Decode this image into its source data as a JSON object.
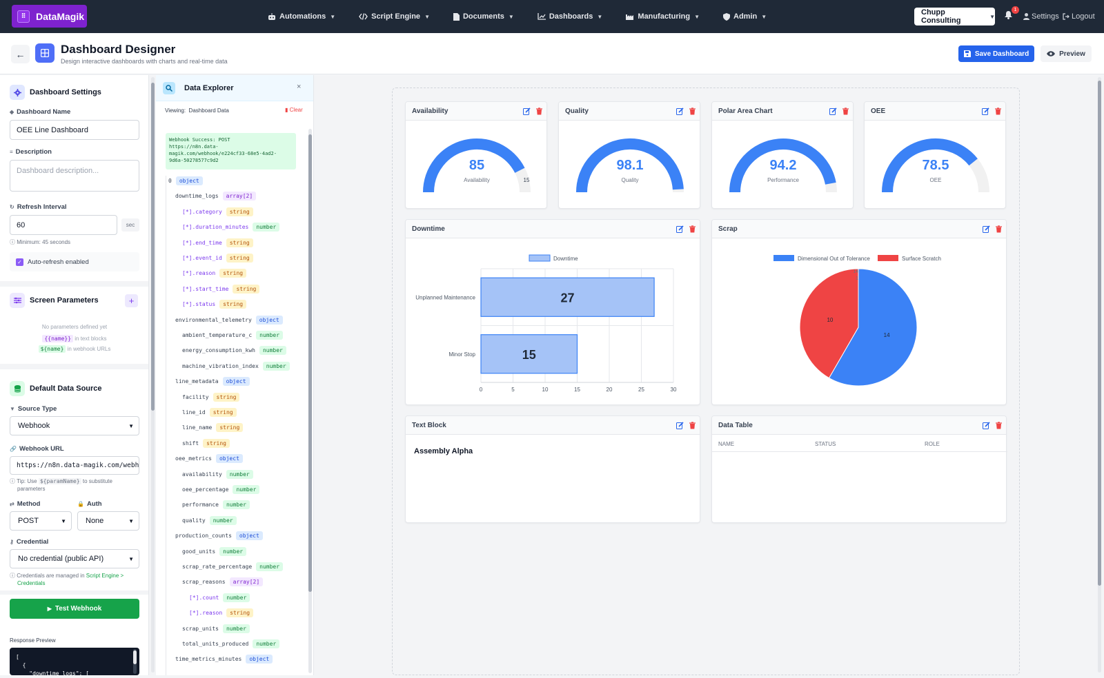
{
  "app": {
    "brand": "DataMagik",
    "logo_glyph": "⠿"
  },
  "nav": {
    "items": [
      {
        "label": "Automations",
        "icon": "robot-icon"
      },
      {
        "label": "Script Engine",
        "icon": "code-icon"
      },
      {
        "label": "Documents",
        "icon": "file-icon"
      },
      {
        "label": "Dashboards",
        "icon": "chart-line-icon"
      },
      {
        "label": "Manufacturing",
        "icon": "industry-icon"
      },
      {
        "label": "Admin",
        "icon": "shield-icon"
      }
    ],
    "client": "Chupp Consulting",
    "notifications": "1",
    "settings": "Settings",
    "logout": "Logout"
  },
  "header": {
    "title": "Dashboard Designer",
    "subtitle": "Design interactive dashboards with charts and real-time data",
    "save": "Save Dashboard",
    "preview": "Preview"
  },
  "settings": {
    "title": "Dashboard Settings",
    "name_label": "Dashboard Name",
    "name_value": "OEE Line Dashboard",
    "desc_label": "Description",
    "desc_placeholder": "Dashboard description...",
    "refresh_label": "Refresh Interval",
    "refresh_value": "60",
    "refresh_unit": "sec",
    "refresh_hint": "Minimum: 45 seconds",
    "autorefresh": "Auto-refresh enabled"
  },
  "params": {
    "title": "Screen Parameters",
    "empty": "No parameters defined yet",
    "hint1_code": "{{name}}",
    "hint1_text": "in text blocks",
    "hint2_code": "${name}",
    "hint2_text": "in webhook URLs"
  },
  "source": {
    "title": "Default Data Source",
    "type_label": "Source Type",
    "type_value": "Webhook",
    "url_label": "Webhook URL",
    "url_value": "https://n8n.data-magik.com/webh",
    "tip_prefix": "Tip: Use",
    "tip_code": "${paramName}",
    "tip_suffix": "to substitute",
    "tip_suffix2": "parameters",
    "method_label": "Method",
    "method_value": "POST",
    "auth_label": "Auth",
    "auth_value": "None",
    "cred_label": "Credential",
    "cred_value": "No credential (public API)",
    "cred_hint_prefix": "Credentials are managed in",
    "cred_hint_link": "Script Engine >",
    "cred_hint_link2": "Credentials",
    "test_button": "Test Webhook",
    "response_label": "Response Preview",
    "response_lines": [
      "[",
      "  {",
      "    \"downtime_logs\": ["
    ]
  },
  "explorer": {
    "title": "Data Explorer",
    "viewing_label": "Viewing:",
    "viewing_value": "Dashboard Data",
    "clear": "Clear",
    "success_lines": [
      "Webhook Success: POST",
      "https://n8n.data-",
      "magik.com/webhook/e224cf33-68e5-4ad2-",
      "9d6a-50278577c9d2"
    ],
    "tree": [
      {
        "key": "0",
        "type": "object",
        "depth": 0,
        "arr": false
      },
      {
        "key": "downtime_logs",
        "type": "array[2]",
        "depth": 1,
        "arr": false
      },
      {
        "key": "[*].category",
        "type": "string",
        "depth": 2,
        "arr": true
      },
      {
        "key": "[*].duration_minutes",
        "type": "number",
        "depth": 2,
        "arr": true
      },
      {
        "key": "[*].end_time",
        "type": "string",
        "depth": 2,
        "arr": true
      },
      {
        "key": "[*].event_id",
        "type": "string",
        "depth": 2,
        "arr": true
      },
      {
        "key": "[*].reason",
        "type": "string",
        "depth": 2,
        "arr": true
      },
      {
        "key": "[*].start_time",
        "type": "string",
        "depth": 2,
        "arr": true
      },
      {
        "key": "[*].status",
        "type": "string",
        "depth": 2,
        "arr": true
      },
      {
        "key": "environmental_telemetry",
        "type": "object",
        "depth": 1,
        "arr": false
      },
      {
        "key": "ambient_temperature_c",
        "type": "number",
        "depth": 2,
        "arr": false
      },
      {
        "key": "energy_consumption_kwh",
        "type": "number",
        "depth": 2,
        "arr": false
      },
      {
        "key": "machine_vibration_index",
        "type": "number",
        "depth": 2,
        "arr": false
      },
      {
        "key": "line_metadata",
        "type": "object",
        "depth": 1,
        "arr": false
      },
      {
        "key": "facility",
        "type": "string",
        "depth": 2,
        "arr": false
      },
      {
        "key": "line_id",
        "type": "string",
        "depth": 2,
        "arr": false
      },
      {
        "key": "line_name",
        "type": "string",
        "depth": 2,
        "arr": false
      },
      {
        "key": "shift",
        "type": "string",
        "depth": 2,
        "arr": false
      },
      {
        "key": "oee_metrics",
        "type": "object",
        "depth": 1,
        "arr": false
      },
      {
        "key": "availability",
        "type": "number",
        "depth": 2,
        "arr": false
      },
      {
        "key": "oee_percentage",
        "type": "number",
        "depth": 2,
        "arr": false
      },
      {
        "key": "performance",
        "type": "number",
        "depth": 2,
        "arr": false
      },
      {
        "key": "quality",
        "type": "number",
        "depth": 2,
        "arr": false
      },
      {
        "key": "production_counts",
        "type": "object",
        "depth": 1,
        "arr": false
      },
      {
        "key": "good_units",
        "type": "number",
        "depth": 2,
        "arr": false
      },
      {
        "key": "scrap_rate_percentage",
        "type": "number",
        "depth": 2,
        "arr": false
      },
      {
        "key": "scrap_reasons",
        "type": "array[2]",
        "depth": 2,
        "arr": false
      },
      {
        "key": "[*].count",
        "type": "number",
        "depth": 3,
        "arr": true
      },
      {
        "key": "[*].reason",
        "type": "string",
        "depth": 3,
        "arr": true
      },
      {
        "key": "scrap_units",
        "type": "number",
        "depth": 2,
        "arr": false
      },
      {
        "key": "total_units_produced",
        "type": "number",
        "depth": 2,
        "arr": false
      },
      {
        "key": "time_metrics_minutes",
        "type": "object",
        "depth": 1,
        "arr": false
      }
    ]
  },
  "widgets": {
    "gauges": [
      {
        "title": "Polar Area Chart",
        "value": "94.2",
        "label": "Performance",
        "fraction": 0.942,
        "remainder": ""
      },
      {
        "title": "Availability",
        "value": "85",
        "label": "Availability",
        "fraction": 0.85,
        "remainder": "15"
      },
      {
        "title": "Quality",
        "value": "98.1",
        "label": "Quality",
        "fraction": 0.981,
        "remainder": ""
      },
      {
        "title": "OEE",
        "value": "78.5",
        "label": "OEE",
        "fraction": 0.785,
        "remainder": ""
      }
    ],
    "downtime_title": "Downtime",
    "scrap_title": "Scrap",
    "text_block_title": "Text Block",
    "text_block_content": "Assembly Alpha",
    "table_title": "Data Table",
    "table_columns": [
      "NAME",
      "STATUS",
      "ROLE"
    ]
  },
  "colors": {
    "primary": "#3b82f6",
    "danger": "#ef4444",
    "bar_fill": "#a5c3f7",
    "gauge_track": "#f1f1f1"
  },
  "chart_data": [
    {
      "type": "bar",
      "orientation": "horizontal",
      "categories": [
        "Unplanned Maintenance",
        "Minor Stop"
      ],
      "series": [
        {
          "name": "Downtime",
          "values": [
            27,
            15
          ]
        }
      ],
      "xlim": [
        0,
        30
      ],
      "x_ticks": [
        "0",
        "5",
        "10",
        "15",
        "20",
        "25",
        "30"
      ],
      "grid": true,
      "legend": "top"
    },
    {
      "type": "pie",
      "labels": [
        "Dimensional Out of Tolerance",
        "Surface Scratch"
      ],
      "values": [
        14,
        10
      ],
      "colors": [
        "#3b82f6",
        "#ef4444"
      ],
      "radial_ticks": [
        "14",
        "1"
      ],
      "legend": "top"
    }
  ]
}
